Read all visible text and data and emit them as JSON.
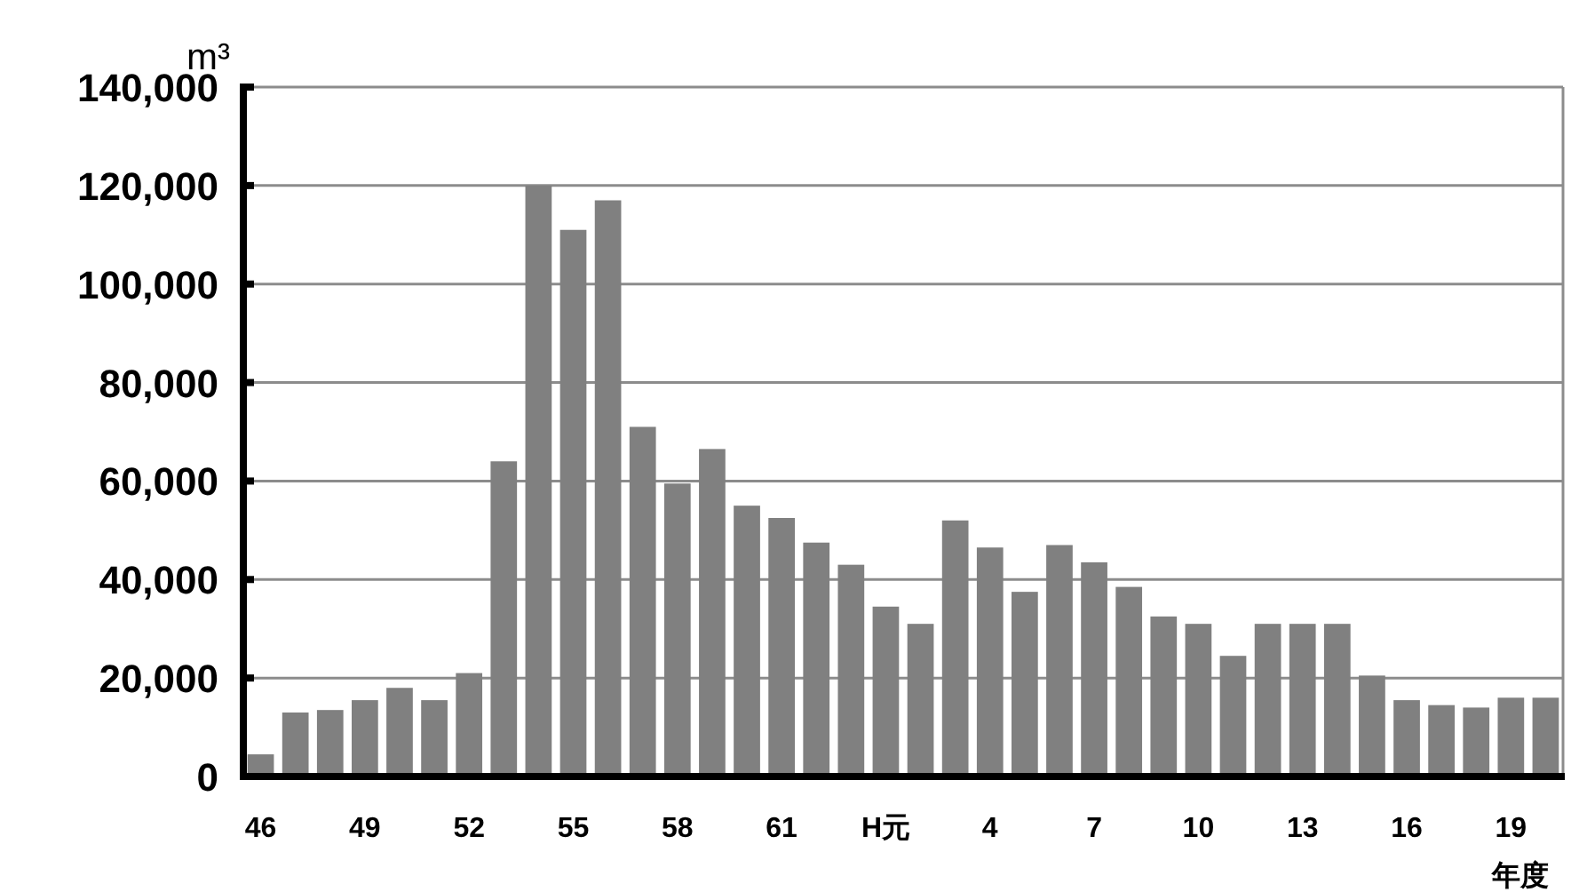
{
  "chart_data": {
    "type": "bar",
    "ylabel": "m³",
    "xlabel": "年度",
    "categories": [
      "46",
      null,
      null,
      "49",
      null,
      null,
      "52",
      null,
      null,
      "55",
      null,
      null,
      "58",
      null,
      null,
      "61",
      null,
      null,
      "H元",
      null,
      null,
      "4",
      null,
      null,
      "7",
      null,
      null,
      "10",
      null,
      null,
      "13",
      null,
      null,
      "16",
      null,
      null,
      "19",
      null
    ],
    "values": [
      4500,
      13000,
      13500,
      15500,
      18000,
      15500,
      21000,
      64000,
      120000,
      111000,
      117000,
      71000,
      59500,
      66500,
      55000,
      52500,
      47500,
      43000,
      34500,
      31000,
      52000,
      46500,
      37500,
      47000,
      43500,
      38500,
      32500,
      31000,
      24500,
      31000,
      31000,
      31000,
      20500,
      15500,
      14500,
      14000,
      16000,
      16000
    ],
    "color": "#808080",
    "ylim": [
      0,
      140000
    ],
    "yticks": [
      0,
      {
        "value": 20000,
        "label": "20,000"
      },
      {
        "value": 40000,
        "label": "40,000"
      },
      {
        "value": 60000,
        "label": "60,000"
      },
      {
        "value": 80000,
        "label": "80,000"
      },
      {
        "value": 100000,
        "label": "100,000"
      },
      {
        "value": 120000,
        "label": "120,000"
      },
      {
        "value": 140000,
        "label": "140,000"
      }
    ],
    "grid": "y"
  }
}
